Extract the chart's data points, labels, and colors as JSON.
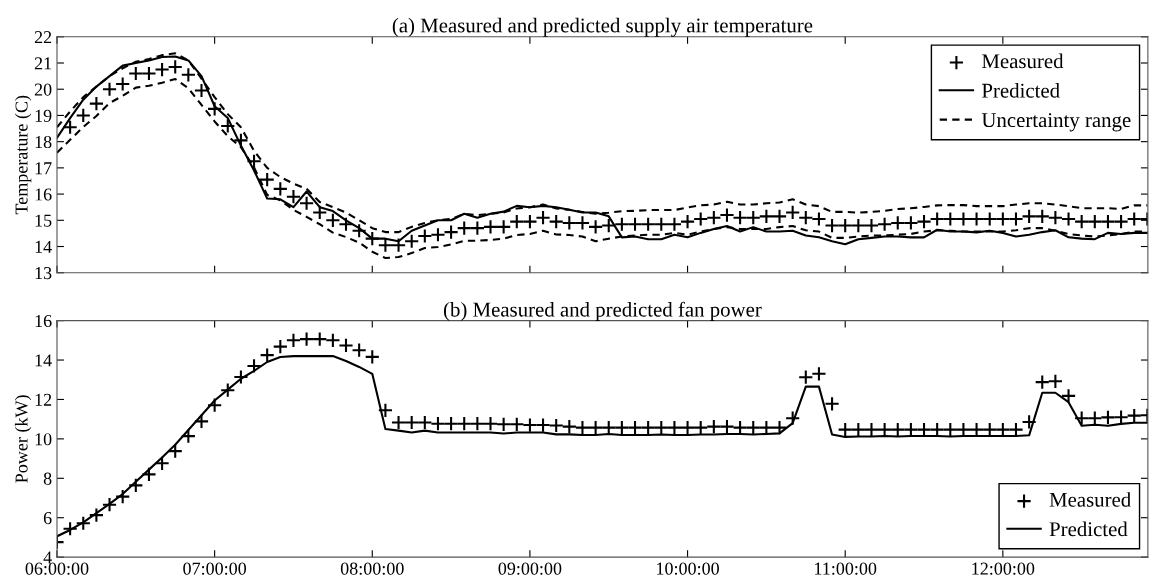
{
  "chart_data": [
    {
      "type": "line",
      "title": "(a) Measured and predicted supply air temperature",
      "ylabel": "Temperature (C)",
      "x": [
        6,
        6.0833,
        6.1667,
        6.25,
        6.3333,
        6.4167,
        6.5,
        6.5833,
        6.6667,
        6.75,
        6.8333,
        6.9167,
        7,
        7.0833,
        7.1667,
        7.25,
        7.3333,
        7.4167,
        7.5,
        7.5833,
        7.6667,
        7.75,
        7.8333,
        7.9167,
        8,
        8.0833,
        8.1667,
        8.25,
        8.3333,
        8.4167,
        8.5,
        8.5833,
        8.6667,
        8.75,
        8.8333,
        8.9167,
        9,
        9.0833,
        9.1667,
        9.25,
        9.3333,
        9.4167,
        9.5,
        9.5833,
        9.6667,
        9.75,
        9.8333,
        9.9167,
        10,
        10.0833,
        10.1667,
        10.25,
        10.3333,
        10.4167,
        10.5,
        10.5833,
        10.6667,
        10.75,
        10.8333,
        10.9167,
        11,
        11.0833,
        11.1667,
        11.25,
        11.3333,
        11.4167,
        11.5,
        11.5833,
        11.6667,
        11.75,
        11.8333,
        11.9167,
        12,
        12.0833,
        12.1667,
        12.25,
        12.3333,
        12.4167,
        12.5,
        12.5833,
        12.6667,
        12.75,
        12.8333,
        12.9167
      ],
      "series": [
        {
          "name": "Measured",
          "type": "scatter",
          "marker": "cross",
          "color": "#000000",
          "values": [
            null,
            18.55,
            19.0,
            19.45,
            20.0,
            20.2,
            20.6,
            20.6,
            20.75,
            20.85,
            20.55,
            19.95,
            19.25,
            18.6,
            18.05,
            17.25,
            16.55,
            16.2,
            15.9,
            15.65,
            15.3,
            15.0,
            14.85,
            14.6,
            14.3,
            14.05,
            14.05,
            14.2,
            14.4,
            14.45,
            14.55,
            14.7,
            14.7,
            14.75,
            14.75,
            14.95,
            14.95,
            15.1,
            14.95,
            14.9,
            14.9,
            14.75,
            14.8,
            14.85,
            14.85,
            14.85,
            14.85,
            14.85,
            14.95,
            15.05,
            15.1,
            15.2,
            15.1,
            15.1,
            15.15,
            15.15,
            15.3,
            15.1,
            15.05,
            14.8,
            14.8,
            14.8,
            14.8,
            14.85,
            14.9,
            14.9,
            14.95,
            15.05,
            15.05,
            15.05,
            15.05,
            15.05,
            15.05,
            15.05,
            15.15,
            15.15,
            15.1,
            15.05,
            14.95,
            14.95,
            14.95,
            14.95,
            15.05,
            15.05
          ]
        },
        {
          "name": "Predicted",
          "line_style": "solid",
          "color": "#000000",
          "values": [
            18.15,
            18.9,
            19.6,
            20.1,
            20.5,
            20.9,
            21.0,
            21.1,
            21.23,
            21.25,
            21.1,
            20.5,
            19.35,
            18.9,
            17.85,
            16.9,
            15.83,
            15.8,
            15.5,
            16.1,
            15.5,
            15.35,
            15.0,
            14.7,
            14.3,
            14.3,
            14.2,
            14.6,
            14.8,
            15.0,
            15.0,
            15.25,
            15.1,
            15.25,
            15.33,
            15.55,
            15.5,
            15.55,
            15.5,
            15.4,
            15.3,
            15.3,
            15.15,
            14.35,
            14.38,
            14.28,
            14.28,
            14.45,
            14.35,
            14.52,
            14.67,
            14.78,
            14.57,
            14.74,
            14.57,
            14.57,
            14.6,
            14.42,
            14.35,
            14.2,
            14.09,
            14.28,
            14.33,
            14.38,
            14.38,
            14.35,
            14.35,
            14.64,
            14.57,
            14.57,
            14.54,
            14.6,
            14.52,
            14.38,
            14.45,
            14.55,
            14.62,
            14.35,
            14.3,
            14.28,
            14.52,
            14.48,
            14.52,
            14.52
          ]
        },
        {
          "name": "Uncertainty range",
          "line_style": "dashed",
          "color": "#000000",
          "values": [
            18.55,
            19.15,
            19.7,
            20.1,
            20.5,
            20.8,
            21.05,
            21.15,
            21.3,
            21.37,
            21.1,
            20.4,
            19.7,
            19.05,
            18.55,
            17.65,
            17.0,
            16.65,
            16.4,
            16.2,
            15.7,
            15.5,
            15.3,
            15.0,
            14.7,
            14.55,
            14.55,
            14.75,
            14.9,
            15.0,
            15.05,
            15.25,
            15.2,
            15.25,
            15.3,
            15.45,
            15.5,
            15.6,
            15.45,
            15.4,
            15.32,
            15.25,
            15.29,
            15.35,
            15.36,
            15.39,
            15.39,
            15.39,
            15.49,
            15.57,
            15.6,
            15.71,
            15.6,
            15.6,
            15.65,
            15.68,
            15.8,
            15.6,
            15.54,
            15.32,
            15.32,
            15.29,
            15.32,
            15.36,
            15.43,
            15.46,
            15.51,
            15.57,
            15.58,
            15.58,
            15.54,
            15.54,
            15.54,
            15.6,
            15.65,
            15.65,
            15.6,
            15.54,
            15.46,
            15.46,
            15.46,
            15.43,
            15.57,
            15.57
          ]
        },
        {
          "line_style": "dashed",
          "color": "#000000",
          "values": [
            17.58,
            18.07,
            18.56,
            18.98,
            19.47,
            19.75,
            20.06,
            20.13,
            20.25,
            20.39,
            20.04,
            19.4,
            18.77,
            18.21,
            17.79,
            17.02,
            15.97,
            15.76,
            15.4,
            15.13,
            14.85,
            14.53,
            14.36,
            14.15,
            13.8,
            13.56,
            13.6,
            13.75,
            13.94,
            13.98,
            14.08,
            14.22,
            14.22,
            14.25,
            14.3,
            14.44,
            14.48,
            14.6,
            14.46,
            14.44,
            14.38,
            14.2,
            14.3,
            14.38,
            14.42,
            14.45,
            14.45,
            14.52,
            14.45,
            14.57,
            14.67,
            14.74,
            14.67,
            14.67,
            14.67,
            14.74,
            14.78,
            14.62,
            14.57,
            14.33,
            14.33,
            14.38,
            14.42,
            14.42,
            14.45,
            14.48,
            14.57,
            14.62,
            14.6,
            14.57,
            14.57,
            14.57,
            14.57,
            14.62,
            14.7,
            14.7,
            14.6,
            14.48,
            14.42,
            14.38,
            14.42,
            14.48,
            14.57,
            14.57
          ]
        }
      ],
      "xlim": [
        6,
        12.92
      ],
      "xticks": [
        {
          "value": 6,
          "label": null
        },
        {
          "value": 7,
          "label": null
        },
        {
          "value": 8,
          "label": null
        },
        {
          "value": 9,
          "label": null
        },
        {
          "value": 10,
          "label": null
        },
        {
          "value": 11,
          "label": null
        },
        {
          "value": 12,
          "label": null
        }
      ],
      "ylim": [
        13,
        22
      ],
      "yticks": [
        13,
        14,
        15,
        16,
        17,
        18,
        19,
        20,
        21,
        22
      ],
      "tick_labels": "y",
      "legend": "top right",
      "grid": false
    },
    {
      "type": "line",
      "title": "(b) Measured and predicted fan power",
      "ylabel": "Power (kW)",
      "x": [
        6,
        6.0833,
        6.1667,
        6.25,
        6.3333,
        6.4167,
        6.5,
        6.5833,
        6.6667,
        6.75,
        6.8333,
        6.9167,
        7,
        7.0833,
        7.1667,
        7.25,
        7.3333,
        7.4167,
        7.5,
        7.5833,
        7.6667,
        7.75,
        7.8333,
        7.9167,
        8,
        8.0833,
        8.1667,
        8.25,
        8.3333,
        8.4167,
        8.5,
        8.5833,
        8.6667,
        8.75,
        8.8333,
        8.9167,
        9,
        9.0833,
        9.1667,
        9.25,
        9.3333,
        9.4167,
        9.5,
        9.5833,
        9.6667,
        9.75,
        9.8333,
        9.9167,
        10,
        10.0833,
        10.1667,
        10.25,
        10.3333,
        10.4167,
        10.5,
        10.5833,
        10.6667,
        10.75,
        10.8333,
        10.9167,
        11,
        11.0833,
        11.1667,
        11.25,
        11.3333,
        11.4167,
        11.5,
        11.5833,
        11.6667,
        11.75,
        11.8333,
        11.9167,
        12,
        12.0833,
        12.1667,
        12.25,
        12.3333,
        12.4167,
        12.5,
        12.5833,
        12.6667,
        12.75,
        12.8333,
        12.9167
      ],
      "series": [
        {
          "name": "Measured",
          "type": "scatter",
          "marker": "cross",
          "color": "#000000",
          "values": [
            4.76,
            5.44,
            5.72,
            6.13,
            6.66,
            7.07,
            7.64,
            8.2,
            8.76,
            9.38,
            10.14,
            10.89,
            11.71,
            12.47,
            13.14,
            13.7,
            14.25,
            14.68,
            15.0,
            15.06,
            15.06,
            15.0,
            14.74,
            14.5,
            14.16,
            11.45,
            10.83,
            10.83,
            10.83,
            10.77,
            10.77,
            10.77,
            10.77,
            10.77,
            10.74,
            10.74,
            10.7,
            10.7,
            10.68,
            10.62,
            10.57,
            10.57,
            10.57,
            10.57,
            10.57,
            10.57,
            10.57,
            10.57,
            10.57,
            10.57,
            10.62,
            10.62,
            10.57,
            10.57,
            10.57,
            10.57,
            11.05,
            13.13,
            13.3,
            11.78,
            10.47,
            10.47,
            10.47,
            10.47,
            10.47,
            10.47,
            10.47,
            10.47,
            10.47,
            10.47,
            10.47,
            10.47,
            10.47,
            10.47,
            10.86,
            12.88,
            12.92,
            12.18,
            11.05,
            11.05,
            11.09,
            11.1,
            11.18,
            11.2
          ]
        },
        {
          "name": "Predicted",
          "line_style": "solid",
          "color": "#000000",
          "values": [
            5.06,
            5.38,
            5.76,
            6.23,
            6.7,
            7.2,
            7.82,
            8.44,
            9.05,
            9.7,
            10.45,
            11.2,
            11.95,
            12.5,
            13.05,
            13.45,
            13.9,
            14.15,
            14.2,
            14.2,
            14.2,
            14.2,
            13.95,
            13.65,
            13.3,
            10.5,
            10.42,
            10.32,
            10.42,
            10.32,
            10.32,
            10.32,
            10.32,
            10.32,
            10.27,
            10.32,
            10.32,
            10.32,
            10.23,
            10.23,
            10.2,
            10.2,
            10.25,
            10.2,
            10.2,
            10.2,
            10.22,
            10.2,
            10.2,
            10.22,
            10.22,
            10.25,
            10.25,
            10.22,
            10.25,
            10.28,
            10.8,
            12.65,
            12.65,
            10.22,
            10.1,
            10.12,
            10.12,
            10.15,
            10.12,
            10.15,
            10.15,
            10.15,
            10.12,
            10.15,
            10.15,
            10.15,
            10.15,
            10.15,
            10.18,
            12.34,
            12.34,
            11.86,
            10.67,
            10.72,
            10.67,
            10.76,
            10.82,
            10.82
          ]
        }
      ],
      "xlim": [
        6,
        12.92
      ],
      "xticks": [
        {
          "value": 6,
          "label": "06:00:00"
        },
        {
          "value": 7,
          "label": "07:00:00"
        },
        {
          "value": 8,
          "label": "08:00:00"
        },
        {
          "value": 9,
          "label": "09:00:00"
        },
        {
          "value": 10,
          "label": "10:00:00"
        },
        {
          "value": 11,
          "label": "11:00:00"
        },
        {
          "value": 12,
          "label": "12:00:00"
        }
      ],
      "ylim": [
        4,
        16
      ],
      "yticks": [
        4,
        6,
        8,
        10,
        12,
        14,
        16
      ],
      "legend": "bottom right",
      "grid": false
    }
  ]
}
